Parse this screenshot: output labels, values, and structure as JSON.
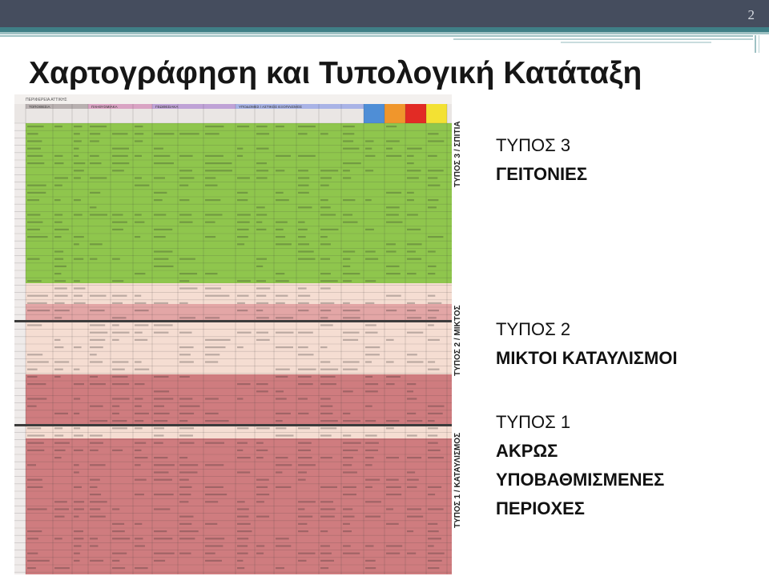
{
  "slide": {
    "number": "2",
    "title": "Χαρτογράφηση και Τυπολογική Κατάταξη"
  },
  "table": {
    "caption": "ΠΕΡΙΦΕΡΕΙΑ ΑΤΤΙΚΗΣ",
    "group_headers": [
      "ΤΟΠΟΘΕΣΙΑ",
      "ΠΛΗΘΥΣΜΙΑΚΑ",
      "ΓΕΩΘΕΣΙΑΚΑ",
      "ΥΠΟΔΟΜΕΣ / ΑΣΤΙΚΟΣ ΕΞΟΠΛΙΣΜΟΣ"
    ],
    "side_labels": [
      "ΤΥΠΟΣ 3 / ΣΠΙΤΙΑ",
      "ΤΥΠΟΣ 2 / ΜΙΚΤΟΣ",
      "ΤΥΠΟΣ 1 / ΚΑΤΑΥΛΙΣΜΟΣ"
    ],
    "colors": {
      "green": "#8fc64d",
      "peach": "#f5ddd2",
      "rose": "#e3a6a6",
      "dark_rose": "#cf7c7f",
      "header_blue": "#4f8ed6",
      "header_orange": "#f0962c",
      "header_red": "#e22b25",
      "header_yellow": "#f3e133"
    }
  },
  "types": [
    {
      "line1": "ΤΥΠΟΣ 3",
      "line2": "ΓΕΙΤΟΝΙΕΣ"
    },
    {
      "line1": "ΤΥΠΟΣ 2",
      "line2": "ΜΙΚΤΟΙ ΚΑΤΑΥΛΙΣΜΟΙ"
    },
    {
      "line1": "ΤΥΠΟΣ 1",
      "line2": "ΑΚΡΩΣ",
      "line3": "ΥΠΟΒΑΘΜΙΣΜΕΝΕΣ",
      "line4": "ΠΕΡΙΟΧΕΣ"
    }
  ]
}
